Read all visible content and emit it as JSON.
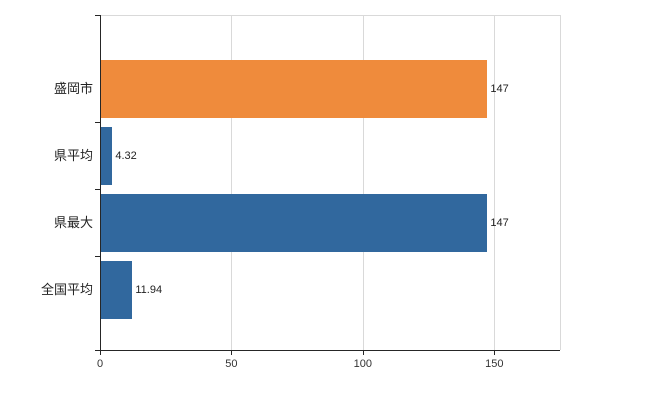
{
  "chart_data": {
    "type": "bar",
    "orientation": "horizontal",
    "title": "",
    "categories": [
      "盛岡市",
      "県平均",
      "県最大",
      "全国平均"
    ],
    "values": [
      147,
      4.32,
      147,
      11.94
    ],
    "value_labels": [
      "147",
      "4.32",
      "147",
      "11.94"
    ],
    "bar_colors": [
      "#ef8b3c",
      "#31689e",
      "#31689e",
      "#31689e"
    ],
    "x_ticks": [
      0,
      50,
      100,
      150
    ],
    "x_tick_labels": [
      "0",
      "50",
      "100",
      "150"
    ],
    "xlim": [
      0,
      175
    ],
    "grid": true,
    "legend": "none",
    "colors": {
      "grid": "#d9d9d9",
      "axis": "#262626",
      "background": "#ffffff"
    }
  }
}
